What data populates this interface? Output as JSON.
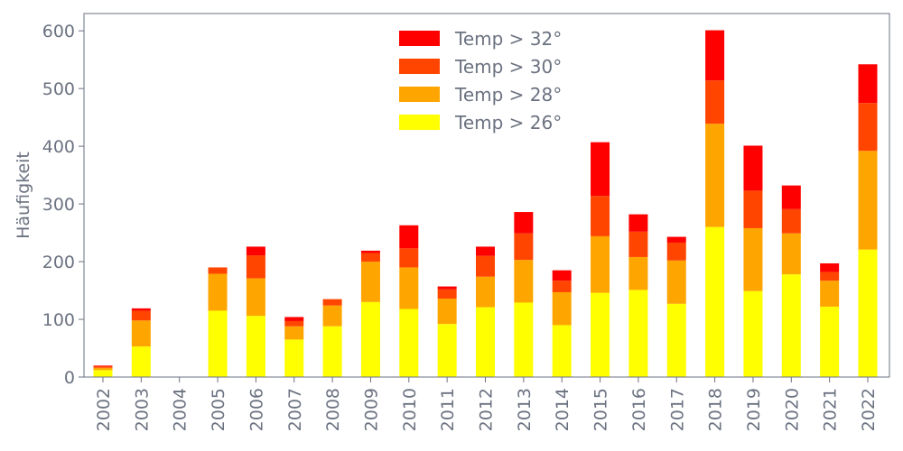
{
  "chart_data": {
    "type": "bar",
    "stacked": true,
    "title": "",
    "xlabel": "",
    "ylabel": "Häufigkeit",
    "ylim": [
      0,
      630
    ],
    "yticks": [
      0,
      100,
      200,
      300,
      400,
      500,
      600
    ],
    "grid": false,
    "legend_position": "top-center",
    "categories": [
      "2002",
      "2003",
      "2004",
      "2005",
      "2006",
      "2007",
      "2008",
      "2009",
      "2010",
      "2011",
      "2012",
      "2013",
      "2014",
      "2015",
      "2016",
      "2017",
      "2018",
      "2019",
      "2020",
      "2021",
      "2022"
    ],
    "series": [
      {
        "name": "Temp > 26°",
        "color": "#ffff00",
        "values": [
          12,
          53,
          0,
          115,
          106,
          65,
          88,
          130,
          118,
          92,
          121,
          129,
          90,
          146,
          151,
          127,
          260,
          149,
          178,
          122,
          221
        ]
      },
      {
        "name": "Temp > 28°",
        "color": "#ffa500",
        "values": [
          4,
          45,
          0,
          64,
          65,
          23,
          36,
          70,
          72,
          44,
          53,
          74,
          57,
          98,
          57,
          75,
          179,
          109,
          71,
          45,
          171
        ]
      },
      {
        "name": "Temp > 30°",
        "color": "#ff4500",
        "values": [
          3,
          17,
          0,
          11,
          40,
          9,
          11,
          15,
          33,
          16,
          36,
          46,
          20,
          70,
          44,
          31,
          75,
          65,
          42,
          15,
          83
        ]
      },
      {
        "name": "Temp > 32°",
        "color": "#ff0000",
        "values": [
          1,
          4,
          0,
          0,
          15,
          7,
          0,
          4,
          40,
          5,
          16,
          37,
          18,
          93,
          30,
          10,
          87,
          78,
          41,
          15,
          67
        ]
      }
    ],
    "colors": {
      "axis": "#6b7280",
      "background": "#ffffff"
    }
  }
}
